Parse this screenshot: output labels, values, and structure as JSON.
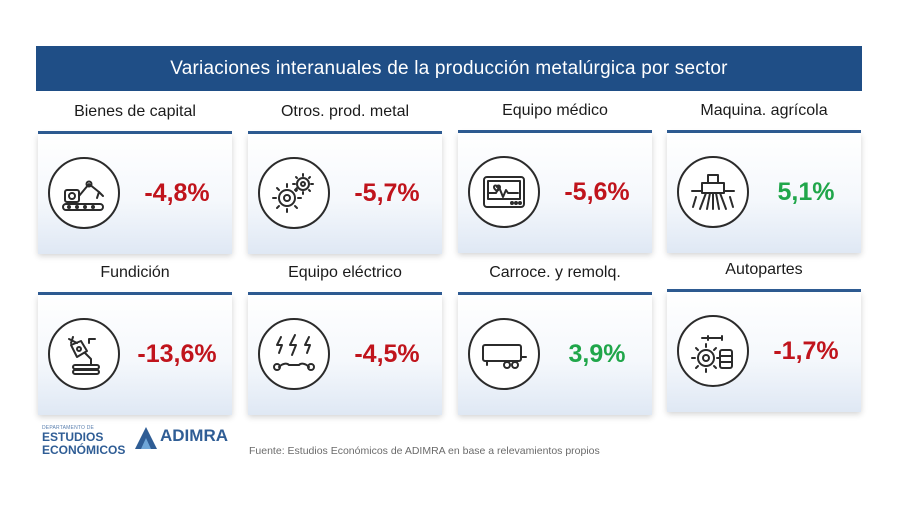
{
  "title": "Variaciones interanuales de la producción metalúrgica por sector",
  "colors": {
    "header_bg": "#1f4e86",
    "negative": "#c0141c",
    "positive": "#20a64a"
  },
  "sectors": [
    {
      "label": "Bienes de capital",
      "value": "-4,8%",
      "trend": "negative",
      "icon": "robot-arm-conveyor-icon"
    },
    {
      "label": "Otros. prod. metal",
      "value": "-5,7%",
      "trend": "negative",
      "icon": "gears-icon"
    },
    {
      "label": "Equipo médico",
      "value": "-5,6%",
      "trend": "negative",
      "icon": "heart-monitor-icon"
    },
    {
      "label": "Maquina. agrícola",
      "value": "5,1%",
      "trend": "positive",
      "icon": "harvester-icon"
    },
    {
      "label": "Fundición",
      "value": "-13,6%",
      "trend": "negative",
      "icon": "foundry-ladle-icon"
    },
    {
      "label": "Equipo eléctrico",
      "value": "-4,5%",
      "trend": "negative",
      "icon": "electric-tools-icon"
    },
    {
      "label": "Carroce. y remolq.",
      "value": "3,9%",
      "trend": "positive",
      "icon": "trailer-icon"
    },
    {
      "label": "Autopartes",
      "value": "-1,7%",
      "trend": "negative",
      "icon": "autoparts-icon"
    }
  ],
  "logos": {
    "department_small": "DEPARTAMENTO DE",
    "department_line1": "ESTUDIOS",
    "department_line2": "ECONÓMICOS",
    "adimra": "ADIMRA"
  },
  "source": "Fuente: Estudios Económicos de ADIMRA en base a relevamientos propios"
}
